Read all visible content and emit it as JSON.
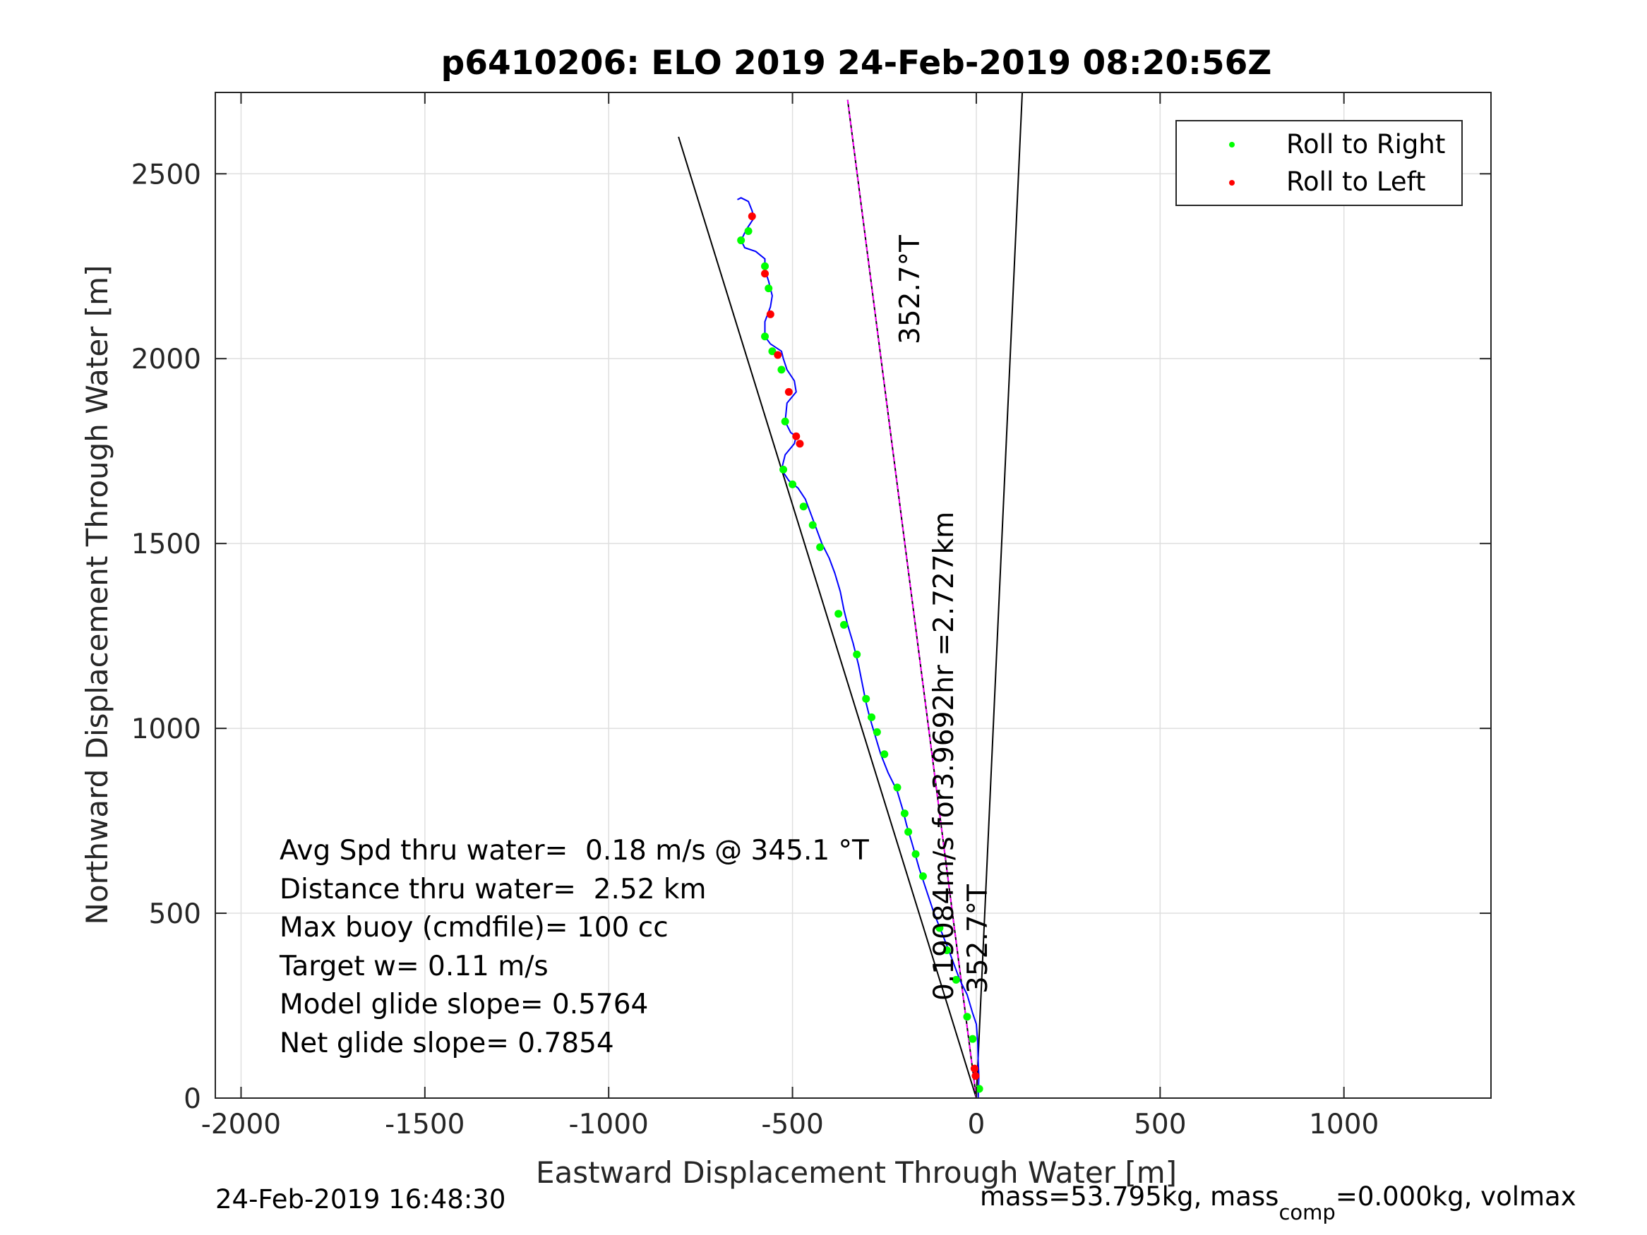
{
  "chart_data": {
    "type": "scatter",
    "title": "p6410206: ELO 2019 24-Feb-2019 08:20:56Z",
    "xlabel": "Eastward Displacement Through Water [m]",
    "ylabel": "Northward Displacement Through Water [m]",
    "xlim": [
      -2070,
      1400
    ],
    "ylim": [
      0,
      2720
    ],
    "xticks": [
      -2000,
      -1500,
      -1000,
      -500,
      0,
      500,
      1000
    ],
    "yticks": [
      0,
      500,
      1000,
      1500,
      2000,
      2500
    ],
    "xtick_labels": [
      "-2000",
      "-1500",
      "-1000",
      "-500",
      "0",
      "500",
      "1000"
    ],
    "ytick_labels": [
      "0",
      "500",
      "1000",
      "1500",
      "2000",
      "2500"
    ],
    "grid": true,
    "legend_position": "top-right",
    "legend": [
      {
        "label": "Roll to Right",
        "color": "#00ff00"
      },
      {
        "label": "Roll to Left",
        "color": "#ff0000"
      }
    ],
    "track_color": "#0000ff",
    "track": [
      [
        5,
        0
      ],
      [
        6,
        30
      ],
      [
        7,
        60
      ],
      [
        5,
        100
      ],
      [
        4,
        150
      ],
      [
        0,
        200
      ],
      [
        -10,
        230
      ],
      [
        -25,
        280
      ],
      [
        -45,
        320
      ],
      [
        -60,
        360
      ],
      [
        -75,
        400
      ],
      [
        -95,
        450
      ],
      [
        -115,
        500
      ],
      [
        -135,
        560
      ],
      [
        -155,
        620
      ],
      [
        -175,
        690
      ],
      [
        -190,
        740
      ],
      [
        -200,
        780
      ],
      [
        -215,
        830
      ],
      [
        -240,
        880
      ],
      [
        -260,
        930
      ],
      [
        -275,
        980
      ],
      [
        -290,
        1030
      ],
      [
        -300,
        1070
      ],
      [
        -310,
        1120
      ],
      [
        -320,
        1170
      ],
      [
        -335,
        1230
      ],
      [
        -350,
        1280
      ],
      [
        -360,
        1320
      ],
      [
        -370,
        1370
      ],
      [
        -385,
        1420
      ],
      [
        -400,
        1460
      ],
      [
        -420,
        1500
      ],
      [
        -435,
        1540
      ],
      [
        -450,
        1580
      ],
      [
        -465,
        1620
      ],
      [
        -485,
        1650
      ],
      [
        -510,
        1670
      ],
      [
        -530,
        1700
      ],
      [
        -520,
        1740
      ],
      [
        -495,
        1770
      ],
      [
        -490,
        1790
      ],
      [
        -505,
        1800
      ],
      [
        -520,
        1830
      ],
      [
        -515,
        1880
      ],
      [
        -490,
        1910
      ],
      [
        -495,
        1940
      ],
      [
        -515,
        1970
      ],
      [
        -525,
        2000
      ],
      [
        -530,
        2020
      ],
      [
        -560,
        2040
      ],
      [
        -575,
        2060
      ],
      [
        -575,
        2100
      ],
      [
        -560,
        2140
      ],
      [
        -555,
        2170
      ],
      [
        -565,
        2210
      ],
      [
        -575,
        2240
      ],
      [
        -575,
        2270
      ],
      [
        -600,
        2290
      ],
      [
        -630,
        2300
      ],
      [
        -640,
        2320
      ],
      [
        -625,
        2350
      ],
      [
        -605,
        2380
      ],
      [
        -610,
        2400
      ],
      [
        -620,
        2425
      ],
      [
        -640,
        2435
      ],
      [
        -650,
        2430
      ]
    ],
    "roll_right": [
      [
        -640,
        2320
      ],
      [
        -620,
        2345
      ],
      [
        -575,
        2250
      ],
      [
        -565,
        2190
      ],
      [
        -575,
        2060
      ],
      [
        -555,
        2020
      ],
      [
        -530,
        1970
      ],
      [
        -520,
        1830
      ],
      [
        -525,
        1700
      ],
      [
        -500,
        1660
      ],
      [
        -470,
        1600
      ],
      [
        -445,
        1550
      ],
      [
        -425,
        1490
      ],
      [
        -375,
        1310
      ],
      [
        -360,
        1280
      ],
      [
        -325,
        1200
      ],
      [
        -300,
        1080
      ],
      [
        -285,
        1030
      ],
      [
        -270,
        990
      ],
      [
        -250,
        930
      ],
      [
        -215,
        840
      ],
      [
        -195,
        770
      ],
      [
        -185,
        720
      ],
      [
        -165,
        660
      ],
      [
        -145,
        600
      ],
      [
        -100,
        460
      ],
      [
        -80,
        400
      ],
      [
        -55,
        320
      ],
      [
        -25,
        220
      ],
      [
        -10,
        160
      ],
      [
        8,
        25
      ]
    ],
    "roll_left": [
      [
        -610,
        2385
      ],
      [
        -575,
        2230
      ],
      [
        -560,
        2120
      ],
      [
        -540,
        2010
      ],
      [
        -510,
        1910
      ],
      [
        -490,
        1790
      ],
      [
        -480,
        1770
      ],
      [
        -5,
        80
      ],
      [
        -2,
        60
      ]
    ],
    "reference_lines": [
      {
        "from": [
          0,
          0
        ],
        "to": [
          -810,
          2600
        ],
        "color": "#000000"
      },
      {
        "from": [
          0,
          0
        ],
        "to": [
          -350,
          2700
        ],
        "color": "#000000"
      },
      {
        "from": [
          0,
          0
        ],
        "to": [
          -350,
          2700
        ],
        "color": "#ff00ff"
      },
      {
        "from": [
          0,
          0
        ],
        "to": [
          125,
          2720
        ],
        "color": "#000000"
      }
    ]
  },
  "annotations": {
    "line_label_1": "352.7°T",
    "line_label_2": "0.19084m/s for3.9692hr =2.727km",
    "line_label_3": "352.7°T"
  },
  "stats": [
    "Avg Spd thru water=  0.18 m/s @ 345.1 °T",
    "Distance thru water=  2.52 km",
    "Max buoy (cmdfile)= 100 cc",
    "Target w= 0.11 m/s",
    "Model glide slope= 0.5764",
    "Net glide slope= 0.7854"
  ],
  "footer": {
    "timestamp": "24-Feb-2019 16:48:30",
    "mass_prefix": "mass=53.795kg, mass",
    "mass_sub": "comp",
    "mass_suffix": "=0.000kg, volmax"
  }
}
